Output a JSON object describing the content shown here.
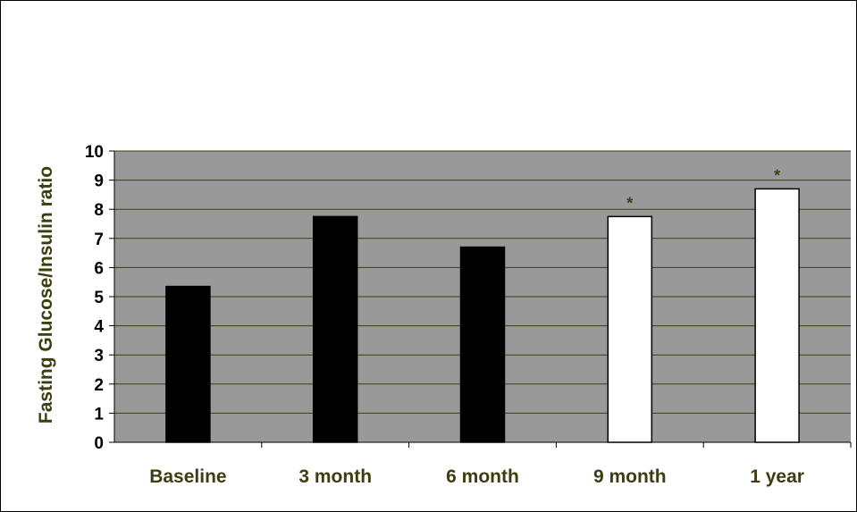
{
  "chart_data": {
    "type": "bar",
    "title": "",
    "xlabel": "",
    "ylabel": "Fasting Glucose/Insulin ratio",
    "ylim": [
      0,
      10
    ],
    "yticks": [
      "0",
      "1",
      "2",
      "3",
      "4",
      "5",
      "6",
      "7",
      "8",
      "9",
      "10"
    ],
    "categories": [
      "Baseline",
      "3 month",
      "6 month",
      "9 month",
      "1 year"
    ],
    "values": [
      5.35,
      7.75,
      6.7,
      7.75,
      8.7
    ],
    "bar_fill": [
      "#000000",
      "#000000",
      "#000000",
      "#ffffff",
      "#ffffff"
    ],
    "significance": [
      "",
      "",
      "",
      "*",
      "*"
    ],
    "grid": true,
    "legend": "none",
    "colors": {
      "plot_background": "#999999",
      "gridline": "#3d3d10",
      "label_text": "#3d3d10"
    }
  }
}
